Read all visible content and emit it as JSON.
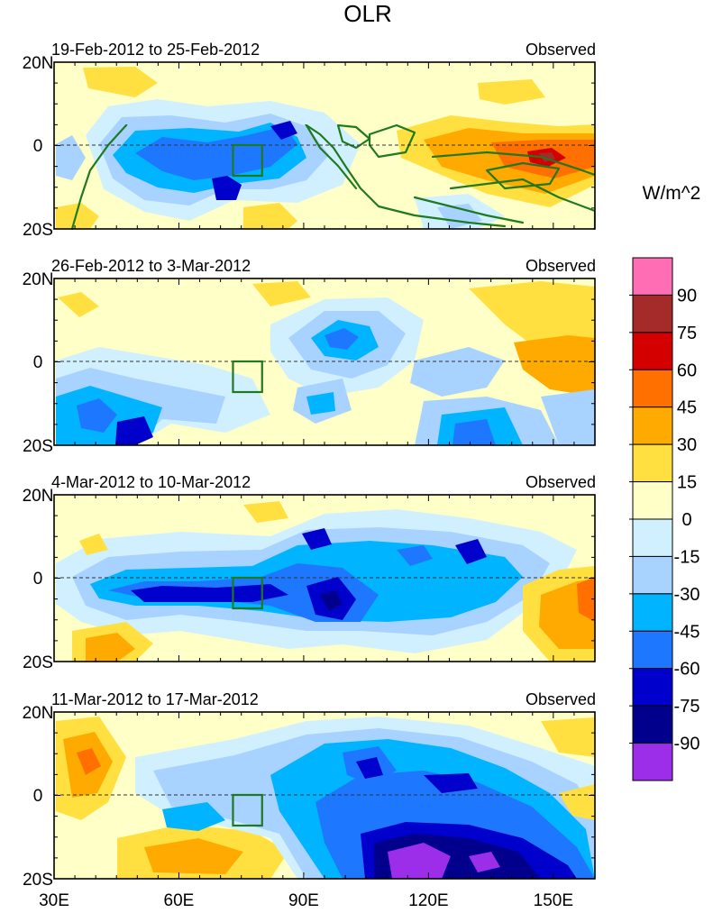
{
  "title": "OLR",
  "observed_label": "Observed",
  "lat_labels": [
    "20N",
    "0",
    "20S"
  ],
  "lon_labels": [
    "30E",
    "60E",
    "90E",
    "120E",
    "150E"
  ],
  "lon_values": [
    30,
    60,
    90,
    120,
    150
  ],
  "lon_range": [
    30,
    160
  ],
  "lat_range": [
    -20,
    20
  ],
  "panels": [
    {
      "date_range": "19-Feb-2012 to 25-Feb-2012"
    },
    {
      "date_range": "26-Feb-2012 to 3-Mar-2012"
    },
    {
      "date_range": "4-Mar-2012 to 10-Mar-2012"
    },
    {
      "date_range": "11-Mar-2012 to 17-Mar-2012"
    }
  ],
  "colorbar": {
    "unit": "W/m^2",
    "labels": [
      "90",
      "75",
      "60",
      "45",
      "30",
      "15",
      "0",
      "-15",
      "-30",
      "-45",
      "-60",
      "-75",
      "-90"
    ],
    "colors": [
      "#ff6eb4",
      "#a52a2a",
      "#d40000",
      "#ff7000",
      "#ffaa00",
      "#ffe040",
      "#ffffc8",
      "#d0f0ff",
      "#a8d2ff",
      "#00b4ff",
      "#1e78ff",
      "#0000cc",
      "#00008c",
      "#9c2de8"
    ]
  },
  "colors": {
    "coast": "#1f7a1f",
    "field_base": "#ffffc8",
    "frame": "#000000"
  }
}
